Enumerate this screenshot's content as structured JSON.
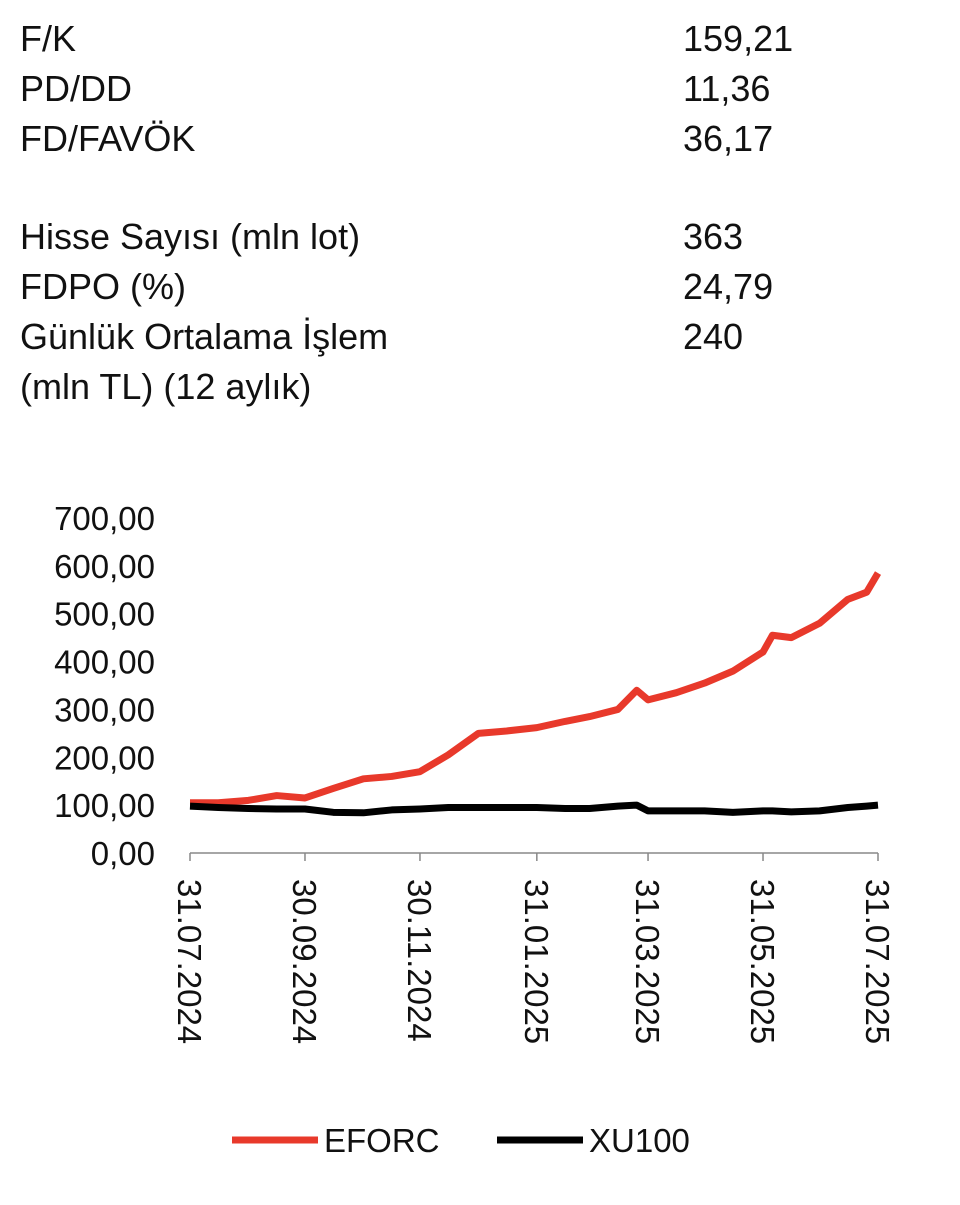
{
  "metrics": [
    [
      {
        "label": "F/K",
        "value": "159,21"
      },
      {
        "label": "PD/DD",
        "value": "11,36"
      },
      {
        "label": "FD/FAVÖK",
        "value": "36,17"
      }
    ],
    [
      {
        "label": "Hisse Sayısı (mln lot)",
        "value": "363"
      },
      {
        "label": "FDPO (%)",
        "value": "24,79"
      },
      {
        "label": "Günlük Ortalama İşlem (mln TL) (12 aylık)",
        "value": "240"
      }
    ]
  ],
  "chart_data": {
    "type": "line",
    "x": [
      "31.07.2024",
      "15.08.2024",
      "31.08.2024",
      "15.09.2024",
      "30.09.2024",
      "15.10.2024",
      "31.10.2024",
      "15.11.2024",
      "30.11.2024",
      "15.12.2024",
      "31.12.2024",
      "15.01.2025",
      "31.01.2025",
      "15.02.2025",
      "28.02.2025",
      "15.03.2025",
      "25.03.2025",
      "31.03.2025",
      "15.04.2025",
      "30.04.2025",
      "15.05.2025",
      "31.05.2025",
      "05.06.2025",
      "15.06.2025",
      "30.06.2025",
      "15.07.2025",
      "25.07.2025",
      "31.07.2025"
    ],
    "series": [
      {
        "name": "EFORC",
        "color": "#e8392b",
        "values": [
          105,
          105,
          110,
          120,
          115,
          135,
          155,
          160,
          170,
          205,
          250,
          255,
          262,
          275,
          285,
          300,
          340,
          320,
          335,
          355,
          380,
          420,
          455,
          450,
          480,
          530,
          545,
          585
        ]
      },
      {
        "name": "XU100",
        "color": "#000000",
        "values": [
          98,
          95,
          93,
          92,
          92,
          85,
          84,
          90,
          92,
          95,
          95,
          95,
          95,
          93,
          93,
          98,
          100,
          88,
          88,
          88,
          85,
          88,
          88,
          86,
          88,
          95,
          98,
          100
        ]
      }
    ],
    "xlim": [
      "31.07.2024",
      "31.07.2025"
    ],
    "xticks": [
      "31.07.2024",
      "30.09.2024",
      "30.11.2024",
      "31.01.2025",
      "31.03.2025",
      "31.05.2025",
      "31.07.2025"
    ],
    "ylim": [
      0,
      700
    ],
    "yticks": [
      {
        "value": 0,
        "label": "0,00"
      },
      {
        "value": 100,
        "label": "100,00"
      },
      {
        "value": 200,
        "label": "200,00"
      },
      {
        "value": 300,
        "label": "300,00"
      },
      {
        "value": 400,
        "label": "400,00"
      },
      {
        "value": 500,
        "label": "500,00"
      },
      {
        "value": 600,
        "label": "600,00"
      },
      {
        "value": 700,
        "label": "700,00"
      }
    ],
    "legend": "bottom"
  }
}
